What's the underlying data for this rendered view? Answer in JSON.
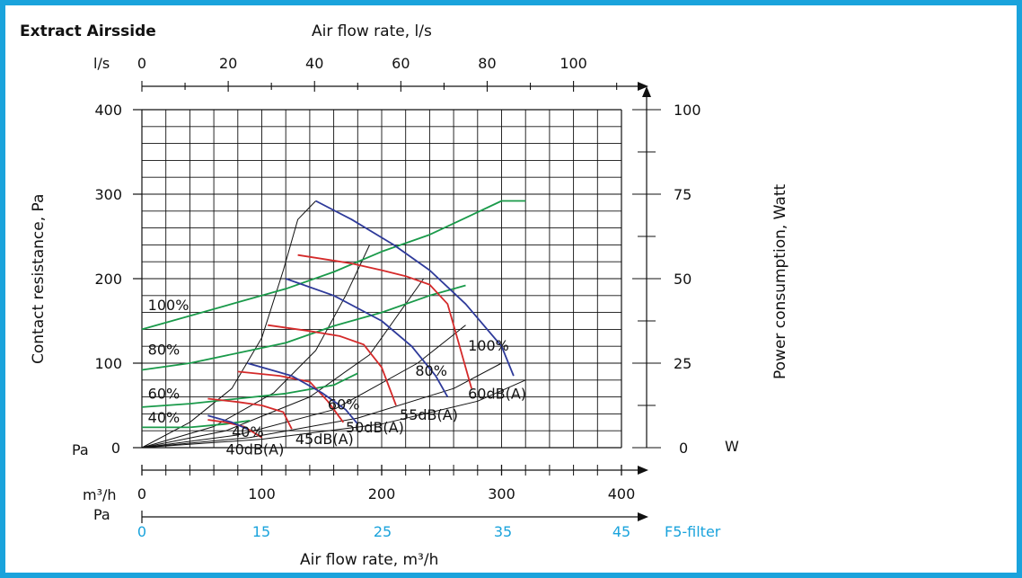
{
  "chart_data": {
    "type": "line",
    "title": "Extract Airsside",
    "top_axis": {
      "label": "Air flow rate, l/s",
      "unit": "l/s",
      "ticks": [
        "0",
        "20",
        "40",
        "60",
        "80",
        "100"
      ],
      "range": [
        0,
        111
      ]
    },
    "bottom_axis": {
      "label": "Air flow rate, m³/h",
      "unit": "m³/h",
      "ticks": [
        "0",
        "100",
        "200",
        "300",
        "400"
      ],
      "range": [
        0,
        400
      ]
    },
    "filter_axis": {
      "label": "F5-filter",
      "unit": "Pa",
      "ticks": [
        "0",
        "15",
        "25",
        "35",
        "45"
      ],
      "color": "#1aa3dc"
    },
    "left_axis": {
      "label": "Contact resistance, Pa",
      "unit": "Pa",
      "ticks": [
        "0",
        "100",
        "200",
        "300",
        "400"
      ],
      "range": [
        0,
        400
      ]
    },
    "right_axis": {
      "label": "Power consumption, Watt",
      "unit": "W",
      "ticks": [
        "0",
        "25",
        "50",
        "75",
        "100"
      ],
      "range": [
        0,
        100
      ]
    },
    "grid": true,
    "system_curves": [
      [
        [
          0,
          0
        ],
        [
          40,
          30
        ],
        [
          75,
          70
        ],
        [
          100,
          130
        ],
        [
          118,
          210
        ],
        [
          130,
          270
        ],
        [
          145,
          292
        ]
      ],
      [
        [
          0,
          0
        ],
        [
          60,
          25
        ],
        [
          110,
          65
        ],
        [
          145,
          115
        ],
        [
          170,
          180
        ],
        [
          190,
          240
        ]
      ],
      [
        [
          0,
          0
        ],
        [
          70,
          20
        ],
        [
          140,
          60
        ],
        [
          190,
          110
        ],
        [
          235,
          200
        ]
      ],
      [
        [
          0,
          0
        ],
        [
          80,
          15
        ],
        [
          160,
          45
        ],
        [
          230,
          100
        ],
        [
          270,
          145
        ]
      ],
      [
        [
          0,
          0
        ],
        [
          90,
          12
        ],
        [
          180,
          35
        ],
        [
          260,
          70
        ],
        [
          300,
          100
        ]
      ],
      [
        [
          0,
          0
        ],
        [
          100,
          10
        ],
        [
          200,
          28
        ],
        [
          280,
          55
        ],
        [
          320,
          80
        ]
      ]
    ],
    "fan_curves": [
      {
        "name": "100%",
        "color": "#2e3a9a",
        "points": [
          [
            145,
            292
          ],
          [
            175,
            270
          ],
          [
            210,
            240
          ],
          [
            240,
            210
          ],
          [
            270,
            170
          ],
          [
            300,
            120
          ],
          [
            310,
            85
          ]
        ]
      },
      {
        "name": "80%",
        "color": "#2e3a9a",
        "points": [
          [
            120,
            200
          ],
          [
            160,
            180
          ],
          [
            200,
            150
          ],
          [
            225,
            120
          ],
          [
            245,
            85
          ],
          [
            255,
            60
          ]
        ]
      },
      {
        "name": "60%",
        "color": "#2e3a9a",
        "points": [
          [
            88,
            100
          ],
          [
            125,
            85
          ],
          [
            150,
            65
          ],
          [
            170,
            45
          ],
          [
            180,
            28
          ]
        ]
      },
      {
        "name": "40%",
        "color": "#2e3a9a",
        "points": [
          [
            55,
            38
          ],
          [
            75,
            30
          ],
          [
            88,
            22
          ]
        ]
      }
    ],
    "sound_curves": [
      {
        "label": "60dB(A)",
        "color": "#d42a2a",
        "points": [
          [
            130,
            228
          ],
          [
            175,
            218
          ],
          [
            200,
            210
          ],
          [
            220,
            203
          ],
          [
            240,
            193
          ],
          [
            255,
            170
          ],
          [
            265,
            120
          ],
          [
            275,
            70
          ]
        ]
      },
      {
        "label": "55dB(A)",
        "color": "#d42a2a",
        "points": [
          [
            105,
            145
          ],
          [
            140,
            138
          ],
          [
            165,
            132
          ],
          [
            185,
            122
          ],
          [
            200,
            95
          ],
          [
            212,
            50
          ]
        ]
      },
      {
        "label": "50dB(A)",
        "color": "#d42a2a",
        "points": [
          [
            80,
            90
          ],
          [
            115,
            85
          ],
          [
            140,
            78
          ],
          [
            155,
            55
          ],
          [
            168,
            30
          ]
        ]
      },
      {
        "label": "45dB(A)",
        "color": "#d42a2a",
        "points": [
          [
            55,
            58
          ],
          [
            80,
            54
          ],
          [
            100,
            50
          ],
          [
            118,
            42
          ],
          [
            125,
            22
          ]
        ]
      },
      {
        "label": "40dB(A)",
        "color": "#d42a2a",
        "points": [
          [
            55,
            33
          ],
          [
            70,
            30
          ],
          [
            85,
            25
          ],
          [
            100,
            12
          ]
        ]
      }
    ],
    "power_curves": [
      {
        "name": "100%",
        "color": "#1a9a4a",
        "points": [
          [
            0,
            35
          ],
          [
            40,
            39
          ],
          [
            80,
            43
          ],
          [
            120,
            47
          ],
          [
            160,
            52
          ],
          [
            200,
            58
          ],
          [
            240,
            63
          ],
          [
            270,
            68
          ],
          [
            300,
            73
          ],
          [
            320,
            73
          ]
        ]
      },
      {
        "name": "80%",
        "color": "#1a9a4a",
        "points": [
          [
            0,
            23
          ],
          [
            40,
            25
          ],
          [
            80,
            28
          ],
          [
            120,
            31
          ],
          [
            160,
            36
          ],
          [
            200,
            40
          ],
          [
            240,
            45
          ],
          [
            270,
            48
          ]
        ]
      },
      {
        "name": "60%",
        "color": "#1a9a4a",
        "points": [
          [
            0,
            12
          ],
          [
            40,
            13
          ],
          [
            80,
            14.5
          ],
          [
            120,
            16
          ],
          [
            160,
            18.5
          ],
          [
            180,
            22
          ]
        ]
      },
      {
        "name": "40%",
        "color": "#1a9a4a",
        "points": [
          [
            0,
            6
          ],
          [
            40,
            6
          ],
          [
            70,
            7
          ],
          [
            90,
            8
          ]
        ]
      }
    ],
    "annotations": [
      {
        "text": "100%",
        "x": 5,
        "y": 163
      },
      {
        "text": "80%",
        "x": 5,
        "y": 110
      },
      {
        "text": "60%",
        "x": 5,
        "y": 58
      },
      {
        "text": "40%",
        "x": 5,
        "y": 30
      },
      {
        "text": "100%",
        "x": 272,
        "y": 115
      },
      {
        "text": "80%",
        "x": 228,
        "y": 85
      },
      {
        "text": "60%",
        "x": 155,
        "y": 45
      },
      {
        "text": "40%",
        "x": 75,
        "y": 13
      },
      {
        "text": "60dB(A)",
        "x": 272,
        "y": 58
      },
      {
        "text": "55dB(A)",
        "x": 215,
        "y": 33
      },
      {
        "text": "50dB(A)",
        "x": 170,
        "y": 18
      },
      {
        "text": "45dB(A)",
        "x": 128,
        "y": 4
      },
      {
        "text": "40dB(A)",
        "x": 70,
        "y": -8
      }
    ]
  }
}
